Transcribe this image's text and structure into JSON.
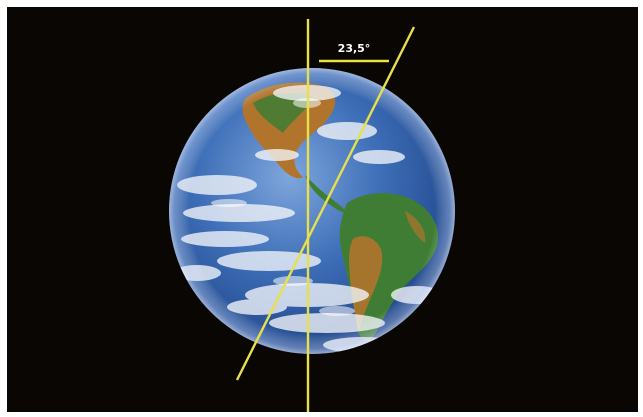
{
  "diagram": {
    "angle_label": "23,5°"
  },
  "colors": {
    "space": "#0a0604",
    "axis_line": "#e8e04a",
    "ocean": "#3e6fb8",
    "land_green": "#3f7d34",
    "land_brown": "#b0742c",
    "cloud": "#f4f6fa"
  }
}
